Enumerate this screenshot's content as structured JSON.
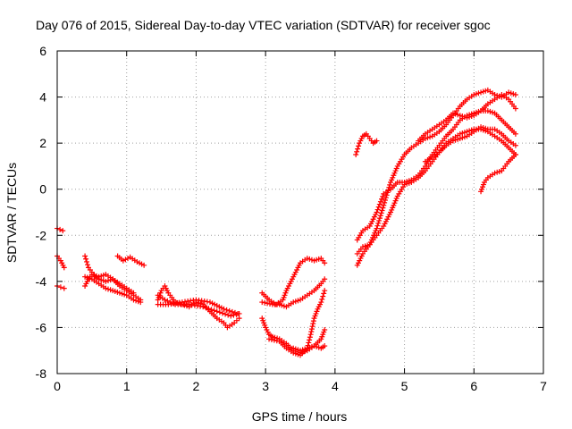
{
  "chart_data": {
    "type": "scatter",
    "title": "Day 076 of 2015, Sidereal Day-to-day VTEC variation (SDTVAR) for receiver sgoc",
    "xlabel": "GPS time / hours",
    "ylabel": "SDTVAR / TECUs",
    "xlim": [
      0,
      7
    ],
    "ylim": [
      -8,
      6
    ],
    "xticks": [
      "0",
      "1",
      "2",
      "3",
      "4",
      "5",
      "6",
      "7"
    ],
    "yticks": [
      "-8",
      "-6",
      "-4",
      "-2",
      "0",
      "2",
      "4",
      "6"
    ],
    "grid": true,
    "legend": "none",
    "marker": "plus",
    "color": "#ff0000",
    "tracks": [
      [
        [
          0.0,
          -1.7
        ],
        [
          0.04,
          -1.75
        ],
        [
          0.08,
          -1.8
        ]
      ],
      [
        [
          0.0,
          -2.9
        ],
        [
          0.05,
          -3.1
        ],
        [
          0.1,
          -3.4
        ]
      ],
      [
        [
          0.0,
          -4.2
        ],
        [
          0.05,
          -4.25
        ],
        [
          0.1,
          -4.3
        ]
      ],
      [
        [
          0.4,
          -2.9
        ],
        [
          0.45,
          -3.4
        ],
        [
          0.5,
          -3.6
        ],
        [
          0.55,
          -3.8
        ],
        [
          0.6,
          -3.9
        ],
        [
          0.7,
          -4.0
        ],
        [
          0.8,
          -3.9
        ],
        [
          0.9,
          -4.2
        ],
        [
          1.0,
          -4.4
        ],
        [
          1.1,
          -4.6
        ],
        [
          1.2,
          -4.8
        ]
      ],
      [
        [
          0.4,
          -3.8
        ],
        [
          0.5,
          -3.9
        ],
        [
          0.6,
          -4.1
        ],
        [
          0.7,
          -4.3
        ],
        [
          0.8,
          -4.4
        ],
        [
          0.9,
          -4.5
        ],
        [
          1.0,
          -4.6
        ],
        [
          1.1,
          -4.8
        ],
        [
          1.2,
          -4.9
        ]
      ],
      [
        [
          0.4,
          -4.2
        ],
        [
          0.45,
          -3.9
        ],
        [
          0.5,
          -3.7
        ],
        [
          0.6,
          -3.8
        ],
        [
          0.7,
          -3.7
        ],
        [
          0.8,
          -3.9
        ],
        [
          0.9,
          -4.1
        ],
        [
          1.0,
          -4.3
        ],
        [
          1.1,
          -4.5
        ]
      ],
      [
        [
          0.87,
          -2.9
        ],
        [
          0.95,
          -3.1
        ],
        [
          1.05,
          -2.95
        ],
        [
          1.15,
          -3.15
        ],
        [
          1.25,
          -3.3
        ]
      ],
      [
        [
          1.45,
          -4.8
        ],
        [
          1.5,
          -4.4
        ],
        [
          1.55,
          -4.2
        ],
        [
          1.6,
          -4.5
        ],
        [
          1.7,
          -4.9
        ],
        [
          1.8,
          -5.0
        ],
        [
          1.9,
          -5.1
        ],
        [
          2.0,
          -4.9
        ],
        [
          2.1,
          -5.0
        ],
        [
          2.2,
          -5.3
        ],
        [
          2.3,
          -5.6
        ],
        [
          2.4,
          -5.8
        ],
        [
          2.45,
          -6.0
        ],
        [
          2.55,
          -5.8
        ],
        [
          2.62,
          -5.6
        ]
      ],
      [
        [
          1.45,
          -5.0
        ],
        [
          1.6,
          -5.0
        ],
        [
          1.8,
          -4.9
        ],
        [
          2.0,
          -4.8
        ],
        [
          2.2,
          -4.9
        ],
        [
          2.4,
          -5.2
        ],
        [
          2.6,
          -5.4
        ]
      ],
      [
        [
          1.45,
          -4.6
        ],
        [
          1.55,
          -4.8
        ],
        [
          1.7,
          -5.0
        ],
        [
          1.9,
          -5.0
        ],
        [
          2.1,
          -5.1
        ],
        [
          2.3,
          -5.3
        ],
        [
          2.5,
          -5.5
        ],
        [
          2.62,
          -5.4
        ]
      ],
      [
        [
          2.95,
          -4.5
        ],
        [
          3.05,
          -4.8
        ],
        [
          3.15,
          -5.0
        ],
        [
          3.25,
          -4.8
        ],
        [
          3.3,
          -4.4
        ],
        [
          3.4,
          -3.8
        ],
        [
          3.5,
          -3.2
        ],
        [
          3.6,
          -3.0
        ],
        [
          3.7,
          -3.1
        ],
        [
          3.8,
          -3.0
        ],
        [
          3.85,
          -3.2
        ]
      ],
      [
        [
          2.95,
          -4.9
        ],
        [
          3.1,
          -5.0
        ],
        [
          3.2,
          -5.0
        ],
        [
          3.3,
          -5.1
        ],
        [
          3.4,
          -4.9
        ],
        [
          3.5,
          -4.8
        ],
        [
          3.6,
          -4.6
        ],
        [
          3.7,
          -4.4
        ],
        [
          3.8,
          -4.1
        ],
        [
          3.85,
          -3.9
        ]
      ],
      [
        [
          2.95,
          -5.6
        ],
        [
          3.0,
          -6.0
        ],
        [
          3.05,
          -6.3
        ],
        [
          3.1,
          -6.4
        ],
        [
          3.2,
          -6.5
        ],
        [
          3.3,
          -6.7
        ],
        [
          3.4,
          -7.0
        ],
        [
          3.5,
          -7.1
        ],
        [
          3.6,
          -7.0
        ],
        [
          3.7,
          -6.8
        ],
        [
          3.8,
          -6.5
        ],
        [
          3.85,
          -6.1
        ]
      ],
      [
        [
          3.05,
          -6.5
        ],
        [
          3.2,
          -6.6
        ],
        [
          3.3,
          -6.9
        ],
        [
          3.4,
          -7.1
        ],
        [
          3.5,
          -7.2
        ],
        [
          3.6,
          -6.9
        ],
        [
          3.65,
          -6.3
        ],
        [
          3.7,
          -5.6
        ],
        [
          3.75,
          -5.2
        ],
        [
          3.8,
          -4.9
        ],
        [
          3.85,
          -4.4
        ]
      ],
      [
        [
          3.4,
          -6.9
        ],
        [
          3.5,
          -7.0
        ],
        [
          3.6,
          -6.9
        ],
        [
          3.7,
          -6.8
        ],
        [
          3.8,
          -6.9
        ],
        [
          3.85,
          -6.8
        ]
      ],
      [
        [
          4.3,
          1.5
        ],
        [
          4.35,
          2.0
        ],
        [
          4.4,
          2.3
        ],
        [
          4.45,
          2.4
        ],
        [
          4.5,
          2.2
        ],
        [
          4.55,
          2.0
        ],
        [
          4.6,
          2.1
        ]
      ],
      [
        [
          4.32,
          -3.3
        ],
        [
          4.4,
          -2.8
        ],
        [
          4.5,
          -2.4
        ],
        [
          4.6,
          -1.7
        ],
        [
          4.7,
          -0.7
        ],
        [
          4.8,
          0.3
        ],
        [
          4.9,
          1.0
        ],
        [
          5.0,
          1.5
        ],
        [
          5.1,
          1.8
        ],
        [
          5.2,
          2.0
        ],
        [
          5.3,
          2.2
        ],
        [
          5.4,
          2.3
        ],
        [
          5.5,
          2.5
        ],
        [
          5.6,
          2.8
        ],
        [
          5.7,
          3.2
        ],
        [
          5.8,
          3.6
        ],
        [
          5.9,
          3.9
        ],
        [
          6.0,
          4.1
        ],
        [
          6.1,
          4.2
        ],
        [
          6.2,
          4.3
        ],
        [
          6.3,
          4.1
        ],
        [
          6.4,
          4.0
        ],
        [
          6.5,
          4.2
        ],
        [
          6.6,
          4.1
        ]
      ],
      [
        [
          4.32,
          -2.8
        ],
        [
          4.4,
          -2.5
        ],
        [
          4.5,
          -2.4
        ],
        [
          4.6,
          -2.0
        ],
        [
          4.7,
          -1.6
        ],
        [
          4.8,
          -1.0
        ],
        [
          4.9,
          -0.3
        ],
        [
          5.0,
          0.2
        ],
        [
          5.1,
          0.3
        ],
        [
          5.2,
          0.5
        ],
        [
          5.3,
          0.8
        ],
        [
          5.4,
          1.2
        ],
        [
          5.5,
          1.6
        ],
        [
          5.6,
          2.0
        ],
        [
          5.7,
          2.2
        ],
        [
          5.8,
          2.4
        ],
        [
          5.9,
          2.5
        ],
        [
          6.0,
          2.6
        ],
        [
          6.1,
          2.6
        ],
        [
          6.2,
          2.5
        ],
        [
          6.3,
          2.3
        ],
        [
          6.4,
          2.1
        ],
        [
          6.5,
          1.8
        ],
        [
          6.6,
          1.5
        ]
      ],
      [
        [
          4.32,
          -2.2
        ],
        [
          4.4,
          -1.8
        ],
        [
          4.5,
          -1.6
        ],
        [
          4.6,
          -1.0
        ],
        [
          4.7,
          -0.2
        ],
        [
          4.8,
          0.0
        ],
        [
          4.9,
          0.3
        ],
        [
          5.0,
          0.3
        ],
        [
          5.1,
          0.4
        ],
        [
          5.2,
          0.6
        ],
        [
          5.3,
          1.0
        ],
        [
          5.4,
          1.5
        ],
        [
          5.5,
          1.9
        ],
        [
          5.6,
          2.3
        ],
        [
          5.7,
          2.6
        ],
        [
          5.8,
          3.0
        ],
        [
          5.9,
          3.2
        ],
        [
          6.0,
          3.3
        ],
        [
          6.1,
          3.4
        ],
        [
          6.2,
          3.4
        ],
        [
          6.3,
          3.3
        ],
        [
          6.4,
          3.0
        ],
        [
          6.5,
          2.7
        ],
        [
          6.6,
          2.4
        ]
      ],
      [
        [
          5.2,
          2.1
        ],
        [
          5.3,
          2.4
        ],
        [
          5.4,
          2.6
        ],
        [
          5.5,
          2.8
        ],
        [
          5.6,
          3.0
        ],
        [
          5.7,
          3.3
        ],
        [
          5.8,
          3.2
        ],
        [
          5.9,
          3.1
        ],
        [
          6.0,
          3.2
        ],
        [
          6.1,
          3.4
        ],
        [
          6.2,
          3.7
        ],
        [
          6.3,
          3.9
        ],
        [
          6.4,
          4.1
        ],
        [
          6.5,
          3.9
        ],
        [
          6.6,
          3.5
        ]
      ],
      [
        [
          5.3,
          1.2
        ],
        [
          5.4,
          1.4
        ],
        [
          5.5,
          1.6
        ],
        [
          5.6,
          1.9
        ],
        [
          5.7,
          2.1
        ],
        [
          5.8,
          2.2
        ],
        [
          5.9,
          2.3
        ],
        [
          6.0,
          2.5
        ],
        [
          6.1,
          2.7
        ],
        [
          6.2,
          2.6
        ],
        [
          6.3,
          2.6
        ],
        [
          6.4,
          2.4
        ],
        [
          6.5,
          2.1
        ],
        [
          6.6,
          1.9
        ]
      ],
      [
        [
          6.1,
          -0.1
        ],
        [
          6.15,
          0.3
        ],
        [
          6.2,
          0.5
        ],
        [
          6.3,
          0.7
        ],
        [
          6.4,
          0.8
        ],
        [
          6.5,
          1.2
        ],
        [
          6.6,
          1.5
        ]
      ]
    ]
  }
}
